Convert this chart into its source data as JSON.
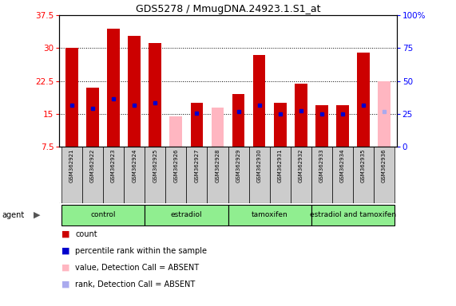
{
  "title": "GDS5278 / MmugDNA.24923.1.S1_at",
  "samples": [
    "GSM362921",
    "GSM362922",
    "GSM362923",
    "GSM362924",
    "GSM362925",
    "GSM362926",
    "GSM362927",
    "GSM362928",
    "GSM362929",
    "GSM362930",
    "GSM362931",
    "GSM362932",
    "GSM362933",
    "GSM362934",
    "GSM362935",
    "GSM362936"
  ],
  "count_present": [
    30.0,
    21.0,
    34.5,
    32.8,
    31.2,
    null,
    17.5,
    null,
    19.5,
    28.5,
    17.5,
    22.0,
    17.0,
    17.0,
    29.0,
    null
  ],
  "count_absent": [
    null,
    null,
    null,
    null,
    null,
    14.5,
    null,
    16.5,
    null,
    null,
    null,
    null,
    null,
    null,
    null,
    22.5
  ],
  "rank_present": [
    17.0,
    16.2,
    18.5,
    17.0,
    17.5,
    null,
    15.2,
    null,
    15.5,
    17.0,
    15.0,
    15.8,
    15.0,
    15.0,
    17.0,
    null
  ],
  "rank_absent": [
    null,
    null,
    null,
    null,
    null,
    null,
    null,
    null,
    null,
    null,
    null,
    null,
    null,
    null,
    null,
    15.5
  ],
  "ymin": 7.5,
  "ymax": 37.5,
  "yticks_left": [
    7.5,
    15.0,
    22.5,
    30.0,
    37.5
  ],
  "yticks_right": [
    0,
    25,
    50,
    75,
    100
  ],
  "bar_color_present": "#cc0000",
  "bar_color_absent": "#ffb6c1",
  "rank_color_present": "#0000cc",
  "rank_color_absent": "#aaaaee",
  "group_color": "#90ee90",
  "sample_box_color": "#cccccc",
  "bar_width": 0.6,
  "figsize": [
    5.71,
    3.84
  ],
  "dpi": 100
}
